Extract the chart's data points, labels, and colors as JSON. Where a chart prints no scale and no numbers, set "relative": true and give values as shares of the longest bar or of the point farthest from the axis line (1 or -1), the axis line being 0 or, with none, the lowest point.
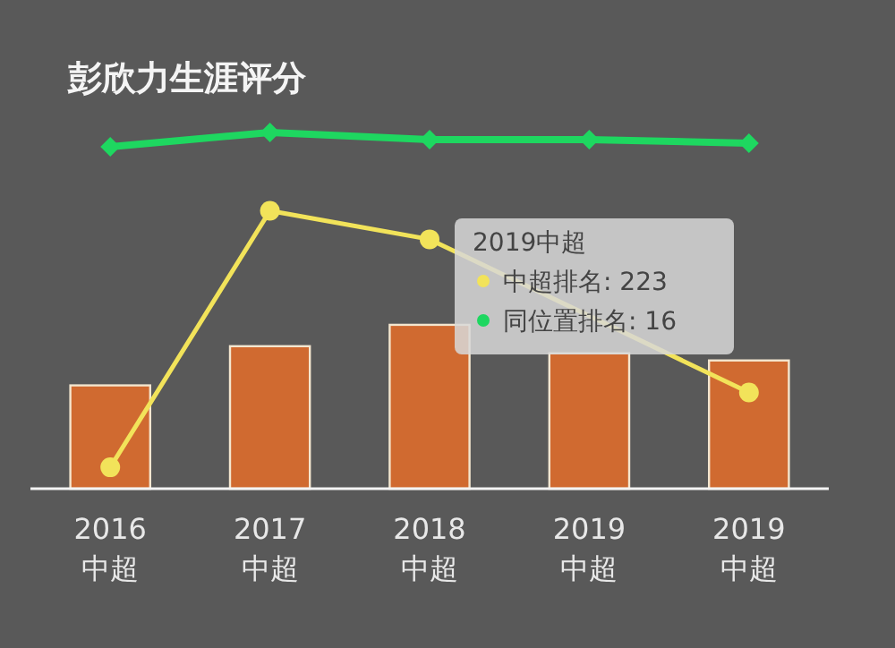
{
  "chart_data": {
    "type": "bar",
    "title": "彭欣力生涯评分",
    "relative": true,
    "categories": [
      "2016\n中超",
      "2017\n中超",
      "2018\n中超",
      "2019\n中超",
      "2019\n中超"
    ],
    "series": [
      {
        "color": "#d06a30",
        "values": [
          0.29,
          0.4,
          0.46,
          0.38,
          0.36
        ]
      },
      {
        "type": "line",
        "color": "#f2e35a",
        "values": [
          0.06,
          0.78,
          0.7,
          null,
          0.27
        ],
        "marker": "circle"
      },
      {
        "type": "line",
        "color": "#1ed760",
        "values": [
          0.96,
          1,
          0.98,
          0.98,
          0.97
        ],
        "marker": "diamond"
      }
    ],
    "annotations": [
      "2019中超",
      "中超排名: 223",
      "同位置排名: 16"
    ]
  }
}
